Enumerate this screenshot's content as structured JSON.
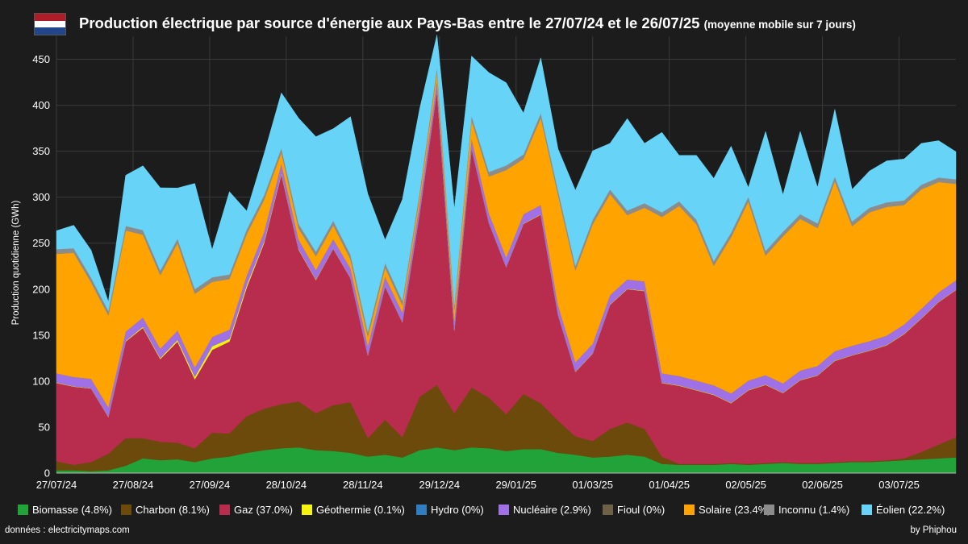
{
  "header": {
    "title": "Production électrique par source d'énergie aux Pays-Bas entre le 27/07/24 et le 26/07/25",
    "subtitle": "(moyenne mobile sur 7 jours)",
    "flag_colors": [
      "#ae1c28",
      "#ffffff",
      "#21468b"
    ]
  },
  "footer": {
    "source": "données : electricitymaps.com",
    "credit": "by Phiphou"
  },
  "chart_data": {
    "type": "area",
    "stacked": true,
    "ylabel": "Production quotidienne (GWh)",
    "ylim": [
      0,
      475
    ],
    "yticks": [
      0,
      50,
      100,
      150,
      200,
      250,
      300,
      350,
      400,
      450
    ],
    "x_tick_labels": [
      "27/07/24",
      "27/08/24",
      "27/09/24",
      "28/10/24",
      "28/11/24",
      "29/12/24",
      "29/01/25",
      "01/03/25",
      "01/04/25",
      "02/05/25",
      "02/06/25",
      "03/07/25"
    ],
    "x_tick_day_index": [
      0,
      31,
      62,
      93,
      124,
      155,
      186,
      217,
      248,
      279,
      310,
      341
    ],
    "x_range_days": [
      0,
      364
    ],
    "grid": true,
    "legend_position": "bottom",
    "x": [
      0,
      7,
      14,
      21,
      28,
      35,
      42,
      49,
      56,
      63,
      70,
      77,
      84,
      91,
      98,
      105,
      112,
      119,
      126,
      133,
      140,
      147,
      154,
      161,
      168,
      175,
      182,
      189,
      196,
      203,
      210,
      217,
      224,
      231,
      238,
      245,
      252,
      259,
      266,
      273,
      280,
      287,
      294,
      301,
      308,
      315,
      322,
      329,
      336,
      343,
      350,
      357,
      364
    ],
    "series": [
      {
        "name": "Biomasse (4.8%)",
        "color": "#22a33a",
        "values": [
          3,
          3,
          2,
          3,
          8,
          16,
          14,
          15,
          12,
          16,
          18,
          22,
          25,
          27,
          28,
          25,
          24,
          22,
          18,
          20,
          17,
          25,
          28,
          25,
          28,
          27,
          24,
          26,
          26,
          22,
          20,
          17,
          18,
          20,
          18,
          10,
          9,
          9,
          9,
          10,
          9,
          10,
          11,
          10,
          10,
          11,
          12,
          12,
          13,
          14,
          15,
          16,
          17
        ]
      },
      {
        "name": "Charbon (8.1%)",
        "color": "#6b4a0c",
        "values": [
          10,
          6,
          10,
          18,
          30,
          22,
          20,
          18,
          15,
          28,
          25,
          40,
          45,
          48,
          50,
          40,
          50,
          55,
          20,
          38,
          22,
          58,
          68,
          40,
          65,
          55,
          40,
          60,
          50,
          35,
          20,
          18,
          30,
          35,
          30,
          8,
          1,
          1,
          1,
          1,
          1,
          1,
          1,
          1,
          1,
          1,
          1,
          1,
          1,
          2,
          8,
          15,
          22
        ]
      },
      {
        "name": "Gaz (37.0%)",
        "color": "#b82c4e",
        "values": [
          85,
          85,
          80,
          40,
          105,
          120,
          90,
          110,
          75,
          90,
          100,
          140,
          180,
          250,
          165,
          145,
          170,
          135,
          90,
          145,
          125,
          200,
          320,
          90,
          260,
          190,
          160,
          185,
          205,
          115,
          70,
          95,
          135,
          145,
          150,
          80,
          85,
          80,
          75,
          65,
          80,
          85,
          75,
          90,
          95,
          110,
          115,
          120,
          125,
          135,
          145,
          155,
          160
        ]
      },
      {
        "name": "Géothermie (0.1%)",
        "color": "#f4f40e",
        "values": [
          0.5,
          0.5,
          0.5,
          0.5,
          0.8,
          1.2,
          1.2,
          2,
          3,
          4,
          3,
          3,
          2,
          1.5,
          1,
          0.8,
          0.5,
          0.5,
          0.5,
          0.5,
          0.5,
          0.5,
          0.5,
          0.5,
          0.5,
          0.5,
          0.5,
          0.5,
          0.5,
          0.5,
          0.5,
          0.5,
          0.5,
          0.5,
          0.5,
          0.5,
          0.5,
          0.5,
          0.5,
          0.5,
          0.5,
          0.5,
          0.5,
          0.5,
          0.5,
          0.5,
          0.5,
          0.5,
          0.5,
          0.5,
          0.5,
          0.5,
          0.5
        ]
      },
      {
        "name": "Hydro (0%)",
        "color": "#2f7ec1",
        "values": [
          0,
          0,
          0,
          0,
          0,
          0,
          0,
          0,
          0,
          0,
          0,
          0,
          0,
          0,
          0,
          0,
          0,
          0,
          0,
          0,
          0,
          0,
          0,
          0,
          0,
          0,
          0,
          0,
          0,
          0,
          0,
          0,
          0,
          0,
          0,
          0,
          0,
          0,
          0,
          0,
          0,
          0,
          0,
          0,
          0,
          0,
          0,
          0,
          0,
          0,
          0,
          0,
          0
        ]
      },
      {
        "name": "Nucléaire (2.9%)",
        "color": "#a070e6",
        "values": [
          10,
          10,
          10,
          10,
          10,
          10,
          10,
          10,
          10,
          10,
          10,
          10,
          10,
          10,
          10,
          10,
          10,
          10,
          10,
          10,
          10,
          10,
          10,
          10,
          10,
          10,
          10,
          10,
          10,
          10,
          10,
          10,
          10,
          10,
          10,
          10,
          10,
          10,
          10,
          10,
          10,
          10,
          10,
          10,
          10,
          10,
          10,
          10,
          10,
          10,
          10,
          10,
          10
        ]
      },
      {
        "name": "Fioul (0%)",
        "color": "#6e6148",
        "values": [
          0,
          0,
          0,
          0,
          0,
          0,
          0,
          0,
          0,
          0,
          0,
          0,
          0,
          0,
          0,
          0,
          0,
          0,
          0,
          0,
          0,
          0,
          0,
          0,
          0,
          0,
          0,
          0,
          0,
          0,
          0,
          0,
          0,
          0,
          0,
          0,
          0,
          0,
          0,
          0,
          0,
          0,
          0,
          0,
          0,
          0,
          0,
          0,
          0,
          0,
          0,
          0,
          0
        ]
      },
      {
        "name": "Solaire (23.4%)",
        "color": "#ffa300",
        "values": [
          130,
          135,
          105,
          100,
          110,
          90,
          80,
          95,
          80,
          60,
          55,
          45,
          35,
          12,
          12,
          15,
          15,
          10,
          10,
          10,
          8,
          8,
          10,
          12,
          20,
          40,
          95,
          60,
          95,
          120,
          100,
          130,
          110,
          70,
          80,
          170,
          185,
          170,
          130,
          170,
          195,
          130,
          160,
          165,
          150,
          185,
          130,
          140,
          140,
          130,
          130,
          120,
          105
        ]
      },
      {
        "name": "Inconnu (1.4%)",
        "color": "#8c8c8c",
        "values": [
          5,
          5,
          5,
          5,
          5,
          5,
          5,
          5,
          5,
          5,
          5,
          5,
          5,
          5,
          5,
          5,
          5,
          5,
          5,
          5,
          5,
          5,
          5,
          5,
          5,
          5,
          5,
          5,
          5,
          5,
          5,
          5,
          5,
          5,
          5,
          5,
          5,
          5,
          5,
          5,
          5,
          5,
          5,
          5,
          5,
          5,
          5,
          5,
          5,
          5,
          5,
          5,
          5
        ]
      },
      {
        "name": "Éolien (22.2%)",
        "color": "#67d3f6",
        "values": [
          20,
          25,
          30,
          10,
          55,
          70,
          90,
          55,
          115,
          30,
          90,
          20,
          45,
          60,
          115,
          125,
          100,
          150,
          150,
          25,
          110,
          90,
          35,
          105,
          65,
          108,
          90,
          45,
          60,
          45,
          82,
          75,
          50,
          100,
          65,
          87,
          50,
          70,
          90,
          94,
          10,
          130,
          40,
          90,
          39,
          73,
          35,
          40,
          45,
          45,
          45,
          40,
          30
        ]
      }
    ]
  }
}
